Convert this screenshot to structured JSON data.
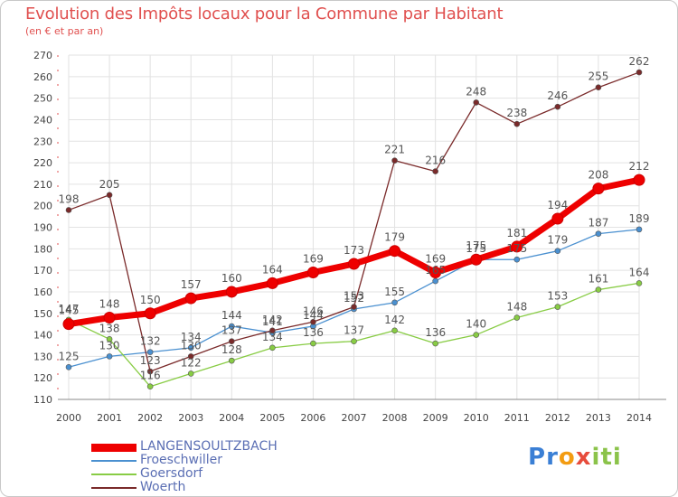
{
  "title": "Evolution des Impôts locaux pour la Commune par Habitant",
  "subtitle": "(en € et par an)",
  "logo": {
    "letters": [
      "P",
      "r",
      "o",
      "x",
      "i",
      "t",
      "i"
    ],
    "colors": [
      "#3a7fd5",
      "#3a7fd5",
      "#f39c12",
      "#e74c3c",
      "#8bc34a",
      "#8bc34a",
      "#8bc34a"
    ]
  },
  "chart_data": {
    "type": "line",
    "title": "Evolution des Impôts locaux pour la Commune par Habitant",
    "subtitle": "(en € et par an)",
    "x": [
      "2000",
      "2001",
      "2002",
      "2003",
      "2004",
      "2005",
      "2006",
      "2007",
      "2008",
      "2009",
      "2010",
      "2011",
      "2012",
      "2013",
      "2014"
    ],
    "ylim": [
      110,
      270
    ],
    "yticks": [
      110,
      120,
      130,
      140,
      150,
      160,
      170,
      180,
      190,
      200,
      210,
      220,
      230,
      240,
      250,
      260,
      270
    ],
    "grid": true,
    "legend_position": "bottom-left",
    "series": [
      {
        "name": "LANGENSOULTZBACH",
        "color": "#ee0000",
        "values": [
          145,
          148,
          150,
          157,
          160,
          164,
          169,
          173,
          179,
          169,
          175,
          181,
          194,
          208,
          212
        ]
      },
      {
        "name": "Froeschwiller",
        "color": "#4a90d0",
        "values": [
          125,
          130,
          132,
          134,
          144,
          141,
          144,
          152,
          155,
          165,
          175,
          175,
          179,
          187,
          189
        ]
      },
      {
        "name": "Goersdorf",
        "color": "#88cc44",
        "values": [
          147,
          138,
          116,
          122,
          128,
          134,
          136,
          137,
          142,
          136,
          140,
          148,
          153,
          161,
          164
        ]
      },
      {
        "name": "Woerth",
        "color": "#7a2a2a",
        "values": [
          198,
          205,
          123,
          130,
          137,
          142,
          146,
          153,
          221,
          216,
          248,
          238,
          246,
          255,
          262
        ]
      }
    ]
  }
}
